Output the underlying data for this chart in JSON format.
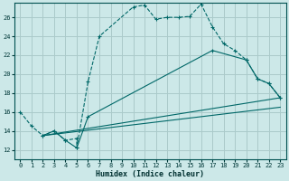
{
  "background_color": "#cce8e8",
  "grid_color": "#aacaca",
  "line_color": "#006868",
  "xlabel": "Humidex (Indice chaleur)",
  "xlim": [
    -0.5,
    23.5
  ],
  "ylim": [
    11,
    27.5
  ],
  "xticks": [
    0,
    1,
    2,
    3,
    4,
    5,
    6,
    7,
    8,
    9,
    10,
    11,
    12,
    13,
    14,
    15,
    16,
    17,
    18,
    19,
    20,
    21,
    22,
    23
  ],
  "yticks": [
    12,
    14,
    16,
    18,
    20,
    22,
    24,
    26
  ],
  "curve1_x": [
    0,
    1,
    2,
    3,
    4,
    5,
    5,
    6,
    7,
    10,
    11,
    12,
    13,
    14,
    15,
    16,
    17,
    18,
    19,
    20,
    21,
    22,
    23
  ],
  "curve1_y": [
    16.0,
    14.5,
    13.5,
    14.0,
    13.0,
    13.2,
    12.2,
    19.2,
    24.0,
    27.1,
    27.3,
    25.8,
    26.0,
    26.0,
    26.1,
    27.4,
    25.0,
    23.2,
    22.5,
    21.5,
    19.5,
    19.0,
    17.5
  ],
  "curve2_x": [
    2,
    3,
    4,
    5,
    6,
    17,
    20,
    21,
    22,
    23
  ],
  "curve2_y": [
    13.5,
    14.0,
    13.0,
    12.2,
    15.5,
    22.5,
    21.5,
    19.5,
    19.0,
    17.5
  ],
  "curve3_x": [
    2,
    23
  ],
  "curve3_y": [
    13.5,
    17.5
  ],
  "curve4_x": [
    2,
    23
  ],
  "curve4_y": [
    13.5,
    16.5
  ]
}
